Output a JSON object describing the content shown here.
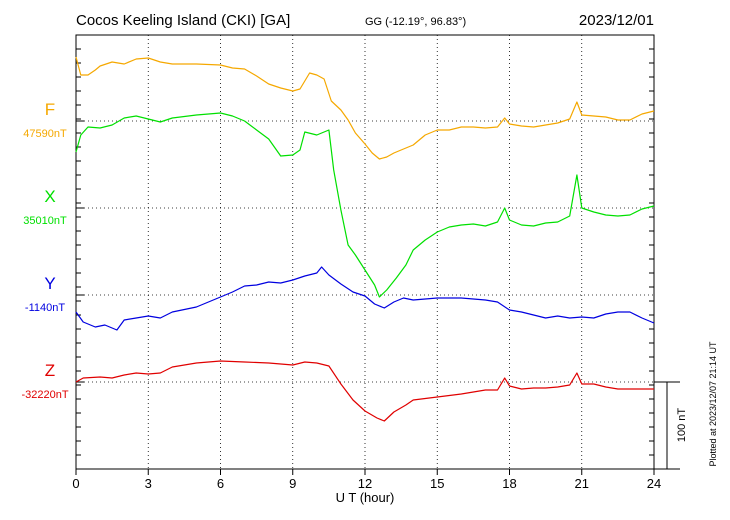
{
  "header": {
    "station": "Cocos Keeling Island (CKI)  [GA]",
    "coords": "GG (-12.19°,  96.83°)",
    "date": "2023/12/01"
  },
  "footer": {
    "plotted": "Plotted at 2023/12/07 21:14 UT"
  },
  "chart_data": {
    "type": "line",
    "xlabel": "U T (hour)",
    "xlim": [
      0,
      24
    ],
    "x_ticks": [
      0,
      3,
      6,
      9,
      12,
      15,
      18,
      21,
      24
    ],
    "x_tick_labels": [
      "0",
      "3",
      "6",
      "9",
      "12",
      "15",
      "18",
      "21",
      "24"
    ],
    "scale_label": "100 nT",
    "scale_nT": 100,
    "grid": true,
    "series": [
      {
        "name": "F",
        "baseline_label": "47590nT",
        "baseline_nT": 47590,
        "color": "#f5a800",
        "points": [
          [
            0,
            57
          ],
          [
            0.2,
            75
          ],
          [
            0.5,
            75
          ],
          [
            0.8,
            70
          ],
          [
            1,
            66
          ],
          [
            1.5,
            62
          ],
          [
            2,
            64
          ],
          [
            2.5,
            59
          ],
          [
            3,
            58
          ],
          [
            3.5,
            62
          ],
          [
            4,
            64
          ],
          [
            5,
            64
          ],
          [
            6,
            65
          ],
          [
            6.5,
            68
          ],
          [
            7,
            69
          ],
          [
            7.5,
            76
          ],
          [
            8,
            84
          ],
          [
            8.5,
            88
          ],
          [
            9,
            91
          ],
          [
            9.3,
            89
          ],
          [
            9.7,
            73
          ],
          [
            10,
            75
          ],
          [
            10.3,
            79
          ],
          [
            10.6,
            101
          ],
          [
            11,
            110
          ],
          [
            11.3,
            120
          ],
          [
            11.6,
            133
          ],
          [
            12,
            144
          ],
          [
            12.3,
            153
          ],
          [
            12.6,
            159
          ],
          [
            12.9,
            157
          ],
          [
            13.2,
            153
          ],
          [
            13.5,
            150
          ],
          [
            14,
            145
          ],
          [
            14.5,
            135
          ],
          [
            15,
            130
          ],
          [
            15.5,
            130
          ],
          [
            16,
            127
          ],
          [
            16.5,
            127
          ],
          [
            17,
            128
          ],
          [
            17.5,
            127
          ],
          [
            17.8,
            118
          ],
          [
            18,
            124
          ],
          [
            18.5,
            126
          ],
          [
            19,
            127
          ],
          [
            19.5,
            125
          ],
          [
            20,
            123
          ],
          [
            20.5,
            119
          ],
          [
            20.8,
            102
          ],
          [
            21,
            115
          ],
          [
            21.5,
            116
          ],
          [
            22,
            117
          ],
          [
            22.5,
            120
          ],
          [
            23,
            120
          ],
          [
            23.5,
            114
          ],
          [
            24,
            111
          ]
        ]
      },
      {
        "name": "X",
        "baseline_label": "35010nT",
        "baseline_nT": 35010,
        "color": "#00e000",
        "points": [
          [
            0,
            152
          ],
          [
            0.2,
            135
          ],
          [
            0.5,
            127
          ],
          [
            1,
            128
          ],
          [
            1.5,
            125
          ],
          [
            2,
            118
          ],
          [
            2.5,
            116
          ],
          [
            3,
            119
          ],
          [
            3.5,
            122
          ],
          [
            4,
            118
          ],
          [
            5,
            115
          ],
          [
            6,
            113
          ],
          [
            6.5,
            116
          ],
          [
            7,
            121
          ],
          [
            7.5,
            130
          ],
          [
            8,
            139
          ],
          [
            8.5,
            156
          ],
          [
            9,
            155
          ],
          [
            9.3,
            150
          ],
          [
            9.5,
            132
          ],
          [
            10,
            135
          ],
          [
            10.5,
            130
          ],
          [
            10.7,
            170
          ],
          [
            11,
            210
          ],
          [
            11.3,
            245
          ],
          [
            11.6,
            255
          ],
          [
            12,
            270
          ],
          [
            12.4,
            285
          ],
          [
            12.6,
            297
          ],
          [
            12.9,
            290
          ],
          [
            13.3,
            278
          ],
          [
            13.7,
            265
          ],
          [
            14,
            250
          ],
          [
            14.5,
            240
          ],
          [
            15,
            232
          ],
          [
            15.5,
            227
          ],
          [
            16,
            225
          ],
          [
            16.5,
            224
          ],
          [
            17,
            226
          ],
          [
            17.5,
            222
          ],
          [
            17.8,
            208
          ],
          [
            18,
            220
          ],
          [
            18.5,
            225
          ],
          [
            19,
            226
          ],
          [
            19.5,
            223
          ],
          [
            20,
            222
          ],
          [
            20.5,
            216
          ],
          [
            20.8,
            175
          ],
          [
            21,
            208
          ],
          [
            21.5,
            212
          ],
          [
            22,
            215
          ],
          [
            22.5,
            216
          ],
          [
            23,
            215
          ],
          [
            23.5,
            209
          ],
          [
            24,
            206
          ]
        ]
      },
      {
        "name": "Y",
        "baseline_label": "-1140nT",
        "baseline_nT": -1140,
        "color": "#0000e0",
        "points": [
          [
            0,
            312
          ],
          [
            0.3,
            322
          ],
          [
            0.8,
            327
          ],
          [
            1.2,
            325
          ],
          [
            1.7,
            330
          ],
          [
            2,
            320
          ],
          [
            2.5,
            318
          ],
          [
            3,
            316
          ],
          [
            3.5,
            318
          ],
          [
            4,
            312
          ],
          [
            5,
            307
          ],
          [
            6,
            297
          ],
          [
            6.5,
            292
          ],
          [
            7,
            286
          ],
          [
            7.5,
            285
          ],
          [
            8,
            282
          ],
          [
            8.5,
            283
          ],
          [
            9,
            280
          ],
          [
            9.5,
            276
          ],
          [
            10,
            273
          ],
          [
            10.2,
            267
          ],
          [
            10.5,
            275
          ],
          [
            11,
            284
          ],
          [
            11.5,
            292
          ],
          [
            12,
            296
          ],
          [
            12.4,
            304
          ],
          [
            12.8,
            308
          ],
          [
            13.2,
            302
          ],
          [
            13.6,
            298
          ],
          [
            14,
            300
          ],
          [
            15,
            298
          ],
          [
            16,
            298
          ],
          [
            17,
            300
          ],
          [
            17.5,
            302
          ],
          [
            18,
            310
          ],
          [
            18.5,
            312
          ],
          [
            19,
            315
          ],
          [
            19.5,
            318
          ],
          [
            20,
            316
          ],
          [
            20.5,
            318
          ],
          [
            21,
            317
          ],
          [
            21.5,
            318
          ],
          [
            22,
            314
          ],
          [
            22.5,
            312
          ],
          [
            23,
            312
          ],
          [
            23.5,
            318
          ],
          [
            24,
            323
          ]
        ]
      },
      {
        "name": "Z",
        "baseline_label": "-32220nT",
        "baseline_nT": -32220,
        "color": "#e00000",
        "points": [
          [
            0,
            382
          ],
          [
            0.3,
            378
          ],
          [
            1,
            377
          ],
          [
            1.5,
            378
          ],
          [
            2,
            375
          ],
          [
            2.5,
            373
          ],
          [
            3,
            374
          ],
          [
            3.5,
            373
          ],
          [
            4,
            367
          ],
          [
            5,
            363
          ],
          [
            6,
            361
          ],
          [
            7,
            362
          ],
          [
            8,
            363
          ],
          [
            9,
            365
          ],
          [
            9.5,
            362
          ],
          [
            10,
            363
          ],
          [
            10.5,
            366
          ],
          [
            11,
            384
          ],
          [
            11.5,
            400
          ],
          [
            12,
            411
          ],
          [
            12.5,
            418
          ],
          [
            12.8,
            421
          ],
          [
            13.2,
            412
          ],
          [
            13.7,
            405
          ],
          [
            14,
            400
          ],
          [
            15,
            397
          ],
          [
            16,
            394
          ],
          [
            17,
            390
          ],
          [
            17.5,
            390
          ],
          [
            17.8,
            378
          ],
          [
            18,
            386
          ],
          [
            18.5,
            389
          ],
          [
            19,
            388
          ],
          [
            19.5,
            388
          ],
          [
            20,
            387
          ],
          [
            20.5,
            385
          ],
          [
            20.8,
            373
          ],
          [
            21,
            384
          ],
          [
            21.5,
            384
          ],
          [
            22,
            387
          ],
          [
            22.5,
            389
          ],
          [
            23,
            389
          ],
          [
            24,
            389
          ]
        ]
      }
    ]
  }
}
